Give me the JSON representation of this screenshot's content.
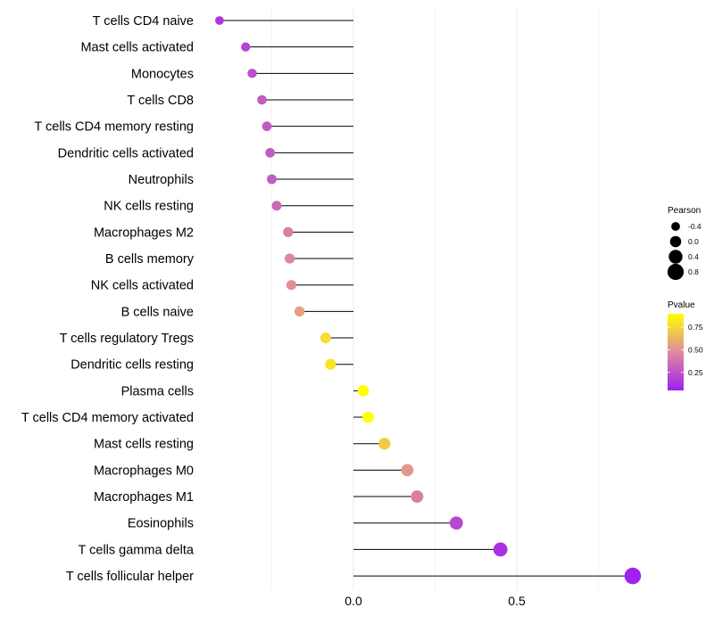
{
  "chart_data": {
    "type": "lollipop",
    "categories": [
      "T cells CD4 naive",
      "Mast cells activated",
      "Monocytes",
      "T cells CD8",
      "T cells CD4 memory resting",
      "Dendritic cells activated",
      "Neutrophils",
      "NK cells resting",
      "Macrophages M2",
      "B cells memory",
      "NK cells activated",
      "B cells naive",
      "T cells regulatory  Tregs ",
      "Dendritic cells resting",
      "Plasma cells",
      "T cells CD4 memory activated",
      "Mast cells resting",
      "Macrophages M0",
      "Macrophages M1",
      "Eosinophils",
      "T cells gamma delta",
      "T cells follicular helper"
    ],
    "values": [
      -0.41,
      -0.33,
      -0.31,
      -0.28,
      -0.265,
      -0.255,
      -0.25,
      -0.235,
      -0.2,
      -0.195,
      -0.19,
      -0.165,
      -0.085,
      -0.07,
      0.03,
      0.045,
      0.095,
      0.165,
      0.195,
      0.315,
      0.45,
      0.855
    ],
    "pvalues": [
      0.15,
      0.2,
      0.25,
      0.3,
      0.3,
      0.3,
      0.3,
      0.35,
      0.45,
      0.48,
      0.52,
      0.58,
      0.82,
      0.85,
      0.95,
      0.95,
      0.75,
      0.55,
      0.45,
      0.22,
      0.12,
      0.05
    ],
    "xlabel": "",
    "ylabel": "",
    "x_ticks": [
      "0.0",
      "0.5"
    ],
    "x_tick_values": [
      0.0,
      0.5
    ],
    "xlim": [
      -0.5,
      0.95
    ],
    "legend": {
      "size_title": "Pearson",
      "size_ticks": [
        "-0.4",
        "0.0",
        "0.4",
        "0.8"
      ],
      "size_values": [
        -0.4,
        0.0,
        0.4,
        0.8
      ],
      "color_title": "Pvalue",
      "color_ticks": [
        "0.75",
        "0.50",
        "0.25"
      ],
      "color_values": [
        0.75,
        0.5,
        0.25
      ],
      "color_low": "#a020f0",
      "color_mid": "#e08a9e",
      "color_high": "#ffff00",
      "position": "right"
    },
    "grid": true,
    "stem_color": "#000000",
    "grid_color": "#ebebeb"
  }
}
